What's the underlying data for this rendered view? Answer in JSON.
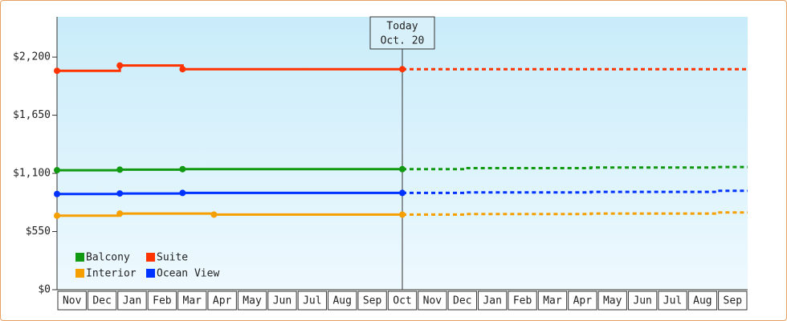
{
  "chart_data": {
    "type": "line",
    "categories": [
      "Nov",
      "Dec",
      "Jan",
      "Feb",
      "Mar",
      "Apr",
      "May",
      "Jun",
      "Jul",
      "Aug",
      "Sep",
      "Oct",
      "Nov",
      "Dec",
      "Jan",
      "Feb",
      "Mar",
      "Apr",
      "May",
      "Jun",
      "Jul",
      "Aug",
      "Sep"
    ],
    "ylim": [
      0,
      2580
    ],
    "yticks": [
      {
        "value": 0,
        "label": "$0"
      },
      {
        "value": 550,
        "label": "$550"
      },
      {
        "value": 1100,
        "label": "$1,100"
      },
      {
        "value": 1650,
        "label": "$1,650"
      },
      {
        "value": 2200,
        "label": "$2,200"
      }
    ],
    "today_index": 11,
    "annotation": [
      "Today",
      "Oct. 20"
    ],
    "series": [
      {
        "name": "Balcony",
        "color": "#119911",
        "values": [
          1130,
          1130,
          1135,
          1135,
          1140,
          1140,
          1140,
          1140,
          1140,
          1140,
          1140,
          1140,
          null,
          null,
          null,
          null,
          null,
          null,
          null,
          null,
          null,
          null,
          null
        ],
        "projected": [
          null,
          null,
          null,
          null,
          null,
          null,
          null,
          null,
          null,
          null,
          null,
          1140,
          1140,
          1150,
          1150,
          1150,
          1150,
          1155,
          1155,
          1155,
          1155,
          1160,
          1160
        ]
      },
      {
        "name": "Suite",
        "color": "#ff3300",
        "values": [
          2070,
          2070,
          2120,
          2120,
          2085,
          2085,
          2085,
          2085,
          2085,
          2085,
          2085,
          2085,
          null,
          null,
          null,
          null,
          null,
          null,
          null,
          null,
          null,
          null,
          null
        ],
        "projected": [
          null,
          null,
          null,
          null,
          null,
          null,
          null,
          null,
          null,
          null,
          null,
          2085,
          2085,
          2085,
          2085,
          2085,
          2085,
          2085,
          2085,
          2085,
          2085,
          2085,
          2085
        ]
      },
      {
        "name": "Interior",
        "color": "#f5a000",
        "values": [
          700,
          700,
          720,
          720,
          720,
          710,
          710,
          710,
          710,
          710,
          710,
          710,
          null,
          null,
          null,
          null,
          null,
          null,
          null,
          null,
          null,
          null,
          null
        ],
        "projected": [
          null,
          null,
          null,
          null,
          null,
          null,
          null,
          null,
          null,
          null,
          null,
          710,
          710,
          715,
          715,
          715,
          715,
          720,
          720,
          720,
          720,
          730,
          730
        ]
      },
      {
        "name": "Ocean View",
        "color": "#0033ff",
        "values": [
          905,
          905,
          910,
          910,
          915,
          915,
          915,
          915,
          915,
          915,
          915,
          915,
          null,
          null,
          null,
          null,
          null,
          null,
          null,
          null,
          null,
          null,
          null
        ],
        "projected": [
          null,
          null,
          null,
          null,
          null,
          null,
          null,
          null,
          null,
          null,
          null,
          915,
          915,
          920,
          920,
          920,
          920,
          925,
          925,
          925,
          925,
          935,
          935
        ]
      }
    ]
  }
}
